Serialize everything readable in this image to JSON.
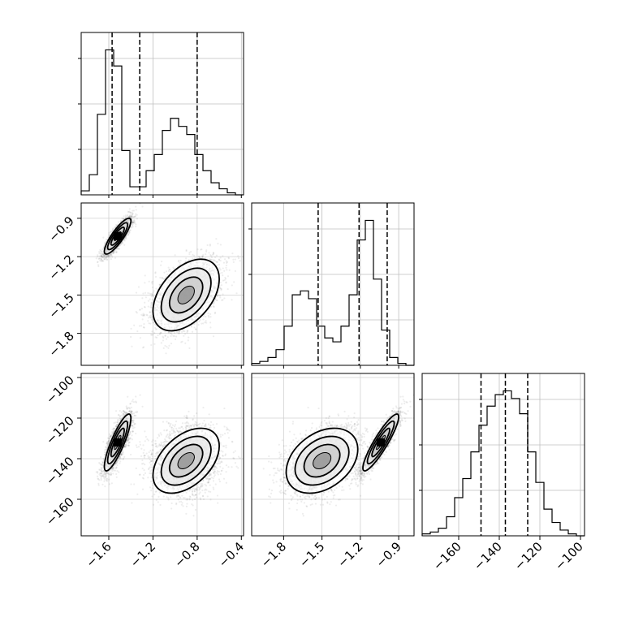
{
  "chart_data": {
    "type": "corner",
    "title": "",
    "parameters": [
      {
        "range": [
          -1.85,
          -0.38
        ],
        "ticks": [
          -1.6,
          -1.2,
          -0.8,
          -0.4
        ],
        "tick_labels": [
          "−1.6",
          "−1.2",
          "−0.8",
          "−0.4"
        ]
      },
      {
        "range": [
          -2.05,
          -0.78
        ],
        "ticks": [
          -1.8,
          -1.5,
          -1.2,
          -0.9
        ],
        "tick_labels": [
          "−1.8",
          "−1.5",
          "−1.2",
          "−0.9"
        ]
      },
      {
        "range": [
          -178,
          -98
        ],
        "ticks": [
          -160,
          -140,
          -120,
          -100
        ],
        "tick_labels": [
          "−160",
          "−140",
          "−120",
          "−100"
        ]
      }
    ],
    "histograms": [
      {
        "bin_start": -1.85,
        "bin_width": 0.0735,
        "counts": [
          2,
          10,
          40,
          72,
          64,
          22,
          4,
          4,
          12,
          20,
          32,
          38,
          34,
          30,
          20,
          12,
          6,
          3,
          1,
          0
        ],
        "quantiles": [
          -1.57,
          -1.32,
          -0.8
        ]
      },
      {
        "bin_start": -2.05,
        "bin_width": 0.0635,
        "counts": [
          1,
          2,
          4,
          8,
          20,
          36,
          38,
          34,
          20,
          14,
          12,
          20,
          36,
          64,
          74,
          44,
          18,
          4,
          1,
          0
        ],
        "quantiles": [
          -1.53,
          -1.21,
          -0.99
        ]
      },
      {
        "bin_start": -178,
        "bin_width": 4.0,
        "counts": [
          1,
          2,
          4,
          10,
          20,
          30,
          44,
          58,
          68,
          74,
          76,
          72,
          64,
          44,
          28,
          14,
          7,
          3,
          1,
          0
        ],
        "quantiles": [
          -149,
          -137,
          -126
        ]
      }
    ],
    "modes": [
      {
        "center": [
          -1.52,
          -1.04,
          -132
        ],
        "sd": [
          0.06,
          0.07,
          7
        ],
        "corr": [
          0.85,
          0.85,
          0.9
        ],
        "weight": 0.45
      },
      {
        "center": [
          -0.9,
          -1.5,
          -141
        ],
        "sd": [
          0.15,
          0.14,
          8
        ],
        "corr": [
          0.45,
          0.45,
          0.35
        ],
        "weight": 0.55
      }
    ],
    "grid": true,
    "dashed_quantile_lines": true
  }
}
